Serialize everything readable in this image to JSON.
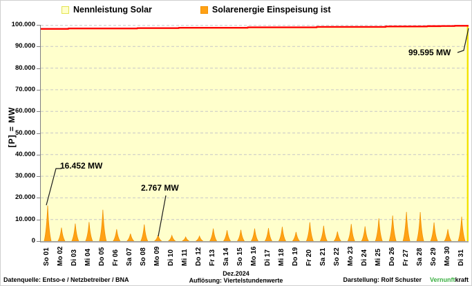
{
  "legend": {
    "items": [
      {
        "label": "Nennleistung Solar",
        "swatch_color": "#FFFFCC"
      },
      {
        "label": "Solarenergie Einspeisung ist",
        "swatch_color": "#FFA115"
      }
    ]
  },
  "y_axis": {
    "title": "[P] = MW",
    "tick_labels": [
      "100.000",
      "90.000",
      "80.000",
      "70.000",
      "60.000",
      "50.000",
      "40.000",
      "30.000",
      "20.000",
      "10.000",
      "0"
    ]
  },
  "annotations": [
    {
      "label": "16.452 MW",
      "value_mw": 16452,
      "day": "So 01"
    },
    {
      "label": "2.767 MW",
      "value_mw": 2767,
      "day": "Mo 09"
    },
    {
      "label": "99.595 MW",
      "value_mw": 99595,
      "day": "Di 31"
    }
  ],
  "footer": {
    "left": "Datenquelle:  Entso-e  / Netzbetreiber / BNA",
    "center_line1": "Dez.2024",
    "center_line2": "Auflösung: Viertelstundenwerte",
    "right_prefix": "Darstellung:  Rolf Schuster",
    "brand_green": "Vernunft",
    "brand_black": "kraft"
  },
  "colors": {
    "area_fill": "#FFFFCC",
    "area_right_edge": "#F3E300",
    "spike_fill": "#FFA115",
    "spike_edge": "#F29100",
    "capacity_line": "#FF0000",
    "grid": "#C6C6C6",
    "axis": "#7F7F7F",
    "brand_green": "#3CB043"
  },
  "chart_data": {
    "type": "area",
    "title": "",
    "month": "Dez.2024",
    "resolution": "Viertelstundenwerte",
    "ylabel": "[P] = MW",
    "ylim": [
      0,
      100000
    ],
    "y_tick_step": 10000,
    "grid": "horizontal-dashed",
    "legend_position": "top",
    "x": [
      "So 01",
      "Mo 02",
      "Di 03",
      "Mi 04",
      "Do 05",
      "Fr 06",
      "Sa 07",
      "So 08",
      "Mo 09",
      "Di 10",
      "Mi 11",
      "Do 12",
      "Fr 13",
      "Sa 14",
      "So 15",
      "Mo 16",
      "Di 17",
      "Mi 18",
      "Do 19",
      "Fr 20",
      "Sa 21",
      "So 22",
      "Mo 23",
      "Di 24",
      "Mi 25",
      "Do 26",
      "Fr 27",
      "Sa 28",
      "So 29",
      "Mo 30",
      "Di 31"
    ],
    "series": [
      {
        "name": "Nennleistung Solar",
        "type": "stepped-area",
        "color": "#FF0000",
        "fill": "#FFFFCC",
        "unit": "MW",
        "values": [
          98150,
          98150,
          98350,
          98350,
          98350,
          98350,
          98350,
          98500,
          98500,
          98500,
          98650,
          98650,
          98650,
          98650,
          98650,
          98850,
          98850,
          98850,
          98850,
          98850,
          99050,
          99050,
          99050,
          99050,
          99050,
          99250,
          99250,
          99250,
          99400,
          99450,
          99595
        ]
      },
      {
        "name": "Solarenergie Einspeisung ist",
        "type": "daily-peak-spikes",
        "color": "#FFA115",
        "unit": "MW",
        "values": [
          16452,
          6200,
          8100,
          8800,
          14500,
          5500,
          3400,
          7700,
          2767,
          2600,
          1900,
          2300,
          5800,
          5000,
          5200,
          5800,
          6000,
          6600,
          4200,
          8700,
          7100,
          4400,
          7900,
          6800,
          10500,
          11800,
          13500,
          13400,
          8600,
          5500,
          11300
        ]
      }
    ],
    "annotations": [
      {
        "text": "16.452 MW",
        "x": "So 01",
        "y": 16452
      },
      {
        "text": "2.767 MW",
        "x": "Mo 09",
        "y": 2767
      },
      {
        "text": "99.595 MW",
        "x": "Di 31",
        "y": 99595
      }
    ]
  }
}
